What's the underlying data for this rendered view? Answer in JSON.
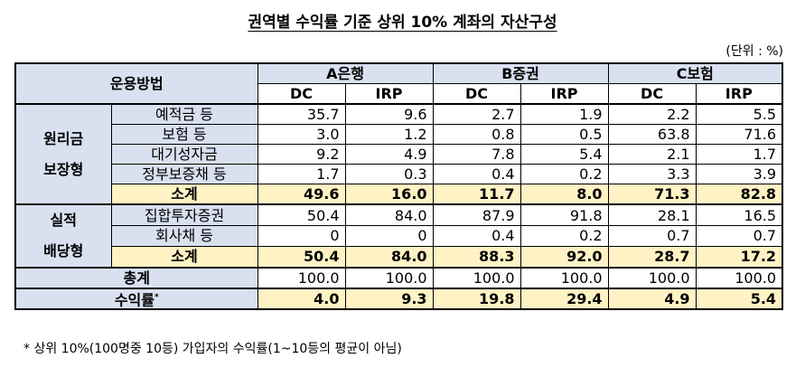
{
  "title": "권역별 수익률 기준 상위 10% 계좌의 자산구성",
  "unit": "(단위 : %)",
  "header": {
    "method": "운용방법",
    "providers": [
      "A은행",
      "B증권",
      "C보험"
    ],
    "types": [
      "DC",
      "IRP",
      "DC",
      "IRP",
      "DC",
      "IRP"
    ]
  },
  "groups": [
    {
      "name_line1": "원리금",
      "name_line2": "보장형",
      "rows": [
        {
          "label": "예적금 등",
          "values": [
            "35.7",
            "9.6",
            "2.7",
            "1.9",
            "2.2",
            "5.5"
          ]
        },
        {
          "label": "보험 등",
          "values": [
            "3.0",
            "1.2",
            "0.8",
            "0.5",
            "63.8",
            "71.6"
          ]
        },
        {
          "label": "대기성자금",
          "values": [
            "9.2",
            "4.9",
            "7.8",
            "5.4",
            "2.1",
            "1.7"
          ]
        },
        {
          "label": "정부보증채 등",
          "values": [
            "1.7",
            "0.3",
            "0.4",
            "0.2",
            "3.3",
            "3.9"
          ]
        }
      ],
      "subtotal": {
        "label": "소계",
        "values": [
          "49.6",
          "16.0",
          "11.7",
          "8.0",
          "71.3",
          "82.8"
        ]
      }
    },
    {
      "name_line1": "실적",
      "name_line2": "배당형",
      "rows": [
        {
          "label": "집합투자증권",
          "values": [
            "50.4",
            "84.0",
            "87.9",
            "91.8",
            "28.1",
            "16.5"
          ]
        },
        {
          "label": "회사채 등",
          "values": [
            "0",
            "0",
            "0.4",
            "0.2",
            "0.7",
            "0.7"
          ]
        }
      ],
      "subtotal": {
        "label": "소계",
        "values": [
          "50.4",
          "84.0",
          "88.3",
          "92.0",
          "28.7",
          "17.2"
        ]
      }
    }
  ],
  "total": {
    "label": "총계",
    "values": [
      "100.0",
      "100.0",
      "100.0",
      "100.0",
      "100.0",
      "100.0"
    ]
  },
  "yield": {
    "label": "수익률",
    "mark": "*",
    "values": [
      "4.0",
      "9.3",
      "19.8",
      "29.4",
      "4.9",
      "5.4"
    ]
  },
  "footnote": "* 상위 10%(100명중 10등) 가입자의 수익률(1~10등의 평균이 아님)"
}
